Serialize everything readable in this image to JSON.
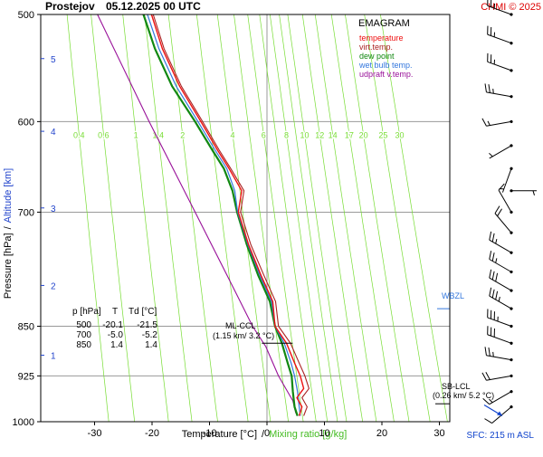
{
  "header": {
    "station": "Prostejov",
    "datetime": "05.12.2025 00 UTC",
    "copyright": "CHMI © 2025"
  },
  "colors": {
    "temperature": "#ee1111",
    "virt_temp": "#aa2222",
    "dew_point": "#118811",
    "wet_bulb": "#3377dd",
    "udpraft": "#991199",
    "mixing": "#77dd33",
    "copyright": "#dd0000",
    "altitude_label": "#2244cc",
    "sfc": "#1144cc"
  },
  "chart_data": {
    "type": "line",
    "title": "EMAGRAM",
    "legend": {
      "position": "top-right",
      "entries": [
        {
          "key": "temperature",
          "label": "temperature"
        },
        {
          "key": "virt_temp",
          "label": "virt.temp."
        },
        {
          "key": "dew_point",
          "label": "dew point"
        },
        {
          "key": "wet_bulb",
          "label": "wet bulb temp."
        },
        {
          "key": "udpraft",
          "label": "udpraft v.temp."
        }
      ]
    },
    "xlabel_left": "Temperature [°C]",
    "xlabel_sep": "/",
    "xlabel_right": "Mixing ratio [g/kg]",
    "ylabel_pressure": "Pressure [hPa]",
    "ylabel_sep": "/",
    "ylabel_altitude": "Altitude [km]",
    "xlim": [
      -37,
      33
    ],
    "ylim": [
      500,
      1000
    ],
    "y_scale": "log",
    "x_ticks": [
      -30,
      -20,
      -10,
      0,
      10,
      20,
      30
    ],
    "y_ticks": [
      500,
      600,
      700,
      850,
      925,
      1000
    ],
    "altitude_ticks": [
      {
        "km": 1,
        "p": 893
      },
      {
        "km": 2,
        "p": 793
      },
      {
        "km": 3,
        "p": 695
      },
      {
        "km": 4,
        "p": 610
      },
      {
        "km": 5,
        "p": 539
      }
    ],
    "mixing_ratio_lines": [
      0.4,
      0.6,
      1,
      1.4,
      2,
      3,
      4,
      5,
      6,
      7,
      8,
      9,
      10,
      12,
      14,
      17,
      20,
      25,
      30
    ],
    "mixing_ratio_labels": [
      "0.4",
      "0.6",
      "1",
      "1.4",
      "2",
      "4",
      "6",
      "8",
      "10",
      "12",
      "14",
      "17",
      "20",
      "25",
      "30"
    ],
    "mixing_label_p": 613,
    "series": [
      {
        "key": "udpraft",
        "name": "udpraft v.temp.",
        "points": [
          [
            -29.5,
            500
          ],
          [
            -20.5,
            600
          ],
          [
            -12.5,
            700
          ],
          [
            -5.6,
            800
          ],
          [
            -2.5,
            850
          ],
          [
            -0.2,
            880
          ],
          [
            2.0,
            925
          ],
          [
            4.5,
            965
          ],
          [
            5.0,
            985
          ],
          [
            5.4,
            990
          ]
        ]
      },
      {
        "key": "dew_point",
        "name": "dew point",
        "points": [
          [
            -21.5,
            500
          ],
          [
            -19.5,
            530
          ],
          [
            -16.5,
            565
          ],
          [
            -12.5,
            600
          ],
          [
            -9.5,
            630
          ],
          [
            -7.5,
            650
          ],
          [
            -6.0,
            675
          ],
          [
            -5.2,
            700
          ],
          [
            -3.5,
            740
          ],
          [
            -1.5,
            780
          ],
          [
            0.5,
            815
          ],
          [
            1.4,
            850
          ],
          [
            2.6,
            875
          ],
          [
            3.6,
            905
          ],
          [
            4.3,
            925
          ],
          [
            4.5,
            950
          ],
          [
            4.8,
            975
          ],
          [
            5.3,
            990
          ]
        ]
      },
      {
        "key": "wet_bulb",
        "name": "wet bulb temp.",
        "points": [
          [
            -20.8,
            500
          ],
          [
            -18.8,
            530
          ],
          [
            -15.8,
            565
          ],
          [
            -12.0,
            600
          ],
          [
            -9.0,
            630
          ],
          [
            -7.0,
            650
          ],
          [
            -5.6,
            675
          ],
          [
            -5.1,
            700
          ],
          [
            -3.3,
            740
          ],
          [
            -1.2,
            780
          ],
          [
            0.8,
            815
          ],
          [
            1.4,
            850
          ],
          [
            3.0,
            875
          ],
          [
            4.2,
            905
          ],
          [
            4.8,
            925
          ],
          [
            5.3,
            950
          ],
          [
            5.6,
            975
          ],
          [
            5.8,
            990
          ]
        ]
      },
      {
        "key": "temperature",
        "name": "temperature",
        "points": [
          [
            -20.1,
            500
          ],
          [
            -18.2,
            530
          ],
          [
            -15.2,
            565
          ],
          [
            -11.5,
            600
          ],
          [
            -8.6,
            630
          ],
          [
            -6.6,
            650
          ],
          [
            -4.4,
            675
          ],
          [
            -5.0,
            700
          ],
          [
            -3.2,
            740
          ],
          [
            -1.0,
            780
          ],
          [
            1.0,
            815
          ],
          [
            1.4,
            850
          ],
          [
            3.4,
            875
          ],
          [
            4.8,
            905
          ],
          [
            5.8,
            925
          ],
          [
            6.4,
            945
          ],
          [
            5.2,
            960
          ],
          [
            6.1,
            975
          ],
          [
            5.6,
            990
          ]
        ]
      },
      {
        "key": "virt_temp",
        "name": "virt.temp.",
        "points": [
          [
            -19.8,
            500
          ],
          [
            -17.9,
            530
          ],
          [
            -14.9,
            565
          ],
          [
            -11.2,
            600
          ],
          [
            -8.3,
            630
          ],
          [
            -6.3,
            650
          ],
          [
            -4.0,
            675
          ],
          [
            -4.6,
            700
          ],
          [
            -2.8,
            740
          ],
          [
            -0.5,
            780
          ],
          [
            1.5,
            815
          ],
          [
            2.0,
            850
          ],
          [
            4.1,
            875
          ],
          [
            5.6,
            905
          ],
          [
            6.6,
            925
          ],
          [
            7.3,
            945
          ],
          [
            6.1,
            960
          ],
          [
            7.0,
            975
          ],
          [
            6.4,
            990
          ]
        ]
      }
    ],
    "table": {
      "headers": [
        "p [hPa]",
        "T",
        "Td [°C]"
      ],
      "rows": [
        [
          "500",
          "-20.1",
          "-21.5"
        ],
        [
          "700",
          "-5.0",
          "-5.2"
        ],
        [
          "850",
          "1.4",
          "1.4"
        ]
      ]
    },
    "annotations": {
      "wbzl": {
        "label": "WBZL",
        "p": 825
      },
      "ml_ccl": {
        "label": "ML-CCL",
        "sub": "(1.15 km/ 3.2 °C)",
        "t": 3.2,
        "p": 875
      },
      "sb_lcl": {
        "label": "SB-LCL",
        "sub": "(0.26 km/ 5.2 °C)",
        "t": 5.2,
        "p": 985
      }
    },
    "surface": "SFC: 215 m ASL",
    "wind_barbs": [
      {
        "p": 500,
        "dir": 290,
        "kt": 25
      },
      {
        "p": 525,
        "dir": 290,
        "kt": 25
      },
      {
        "p": 550,
        "dir": 290,
        "kt": 25
      },
      {
        "p": 575,
        "dir": 280,
        "kt": 25
      },
      {
        "p": 600,
        "dir": 260,
        "kt": 15
      },
      {
        "p": 625,
        "dir": 240,
        "kt": 5
      },
      {
        "p": 650,
        "dir": 200,
        "kt": 5
      },
      {
        "p": 675,
        "dir": 90,
        "kt": 5
      },
      {
        "p": 700,
        "dir": 330,
        "kt": 10
      },
      {
        "p": 725,
        "dir": 320,
        "kt": 20
      },
      {
        "p": 750,
        "dir": 300,
        "kt": 25
      },
      {
        "p": 775,
        "dir": 300,
        "kt": 25
      },
      {
        "p": 800,
        "dir": 300,
        "kt": 30
      },
      {
        "p": 825,
        "dir": 300,
        "kt": 35
      },
      {
        "p": 850,
        "dir": 290,
        "kt": 35
      },
      {
        "p": 875,
        "dir": 290,
        "kt": 30
      },
      {
        "p": 900,
        "dir": 280,
        "kt": 25
      },
      {
        "p": 925,
        "dir": 260,
        "kt": 20
      },
      {
        "p": 950,
        "dir": 240,
        "kt": 15
      },
      {
        "p": 975,
        "dir": 230,
        "kt": 10
      }
    ],
    "surface_wind": {
      "p": 990,
      "dir": 230,
      "kt": 5
    }
  }
}
